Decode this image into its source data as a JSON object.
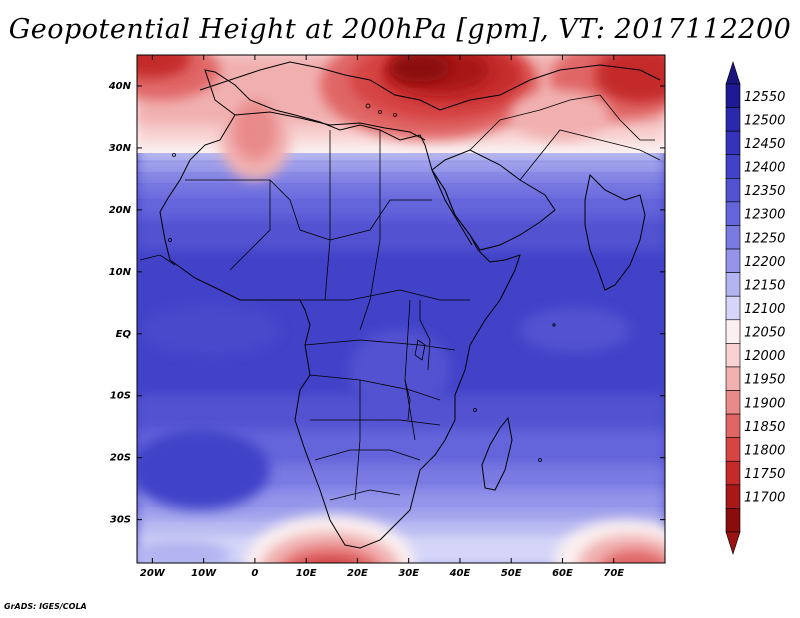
{
  "title": "Geopotential Height at 200hPa [gpm], VT: 2017112200",
  "credit": "GrADS: IGES/COLA",
  "map": {
    "lon_range": [
      -23,
      80
    ],
    "lat_range": [
      -37,
      45
    ],
    "lon_ticks": [
      {
        "lon": -20,
        "label": "20W"
      },
      {
        "lon": -10,
        "label": "10W"
      },
      {
        "lon": 0,
        "label": "0"
      },
      {
        "lon": 10,
        "label": "10E"
      },
      {
        "lon": 20,
        "label": "20E"
      },
      {
        "lon": 30,
        "label": "30E"
      },
      {
        "lon": 40,
        "label": "40E"
      },
      {
        "lon": 50,
        "label": "50E"
      },
      {
        "lon": 60,
        "label": "60E"
      },
      {
        "lon": 70,
        "label": "70E"
      }
    ],
    "lat_ticks": [
      {
        "lat": 40,
        "label": "40N"
      },
      {
        "lat": 30,
        "label": "30N"
      },
      {
        "lat": 20,
        "label": "20N"
      },
      {
        "lat": 10,
        "label": "10N"
      },
      {
        "lat": 0,
        "label": "EQ"
      },
      {
        "lat": -10,
        "label": "10S"
      },
      {
        "lat": -20,
        "label": "20S"
      },
      {
        "lat": -30,
        "label": "30S"
      }
    ]
  },
  "colorbar": {
    "levels": [
      "12550",
      "12500",
      "12450",
      "12400",
      "12350",
      "12300",
      "12250",
      "12200",
      "12150",
      "12100",
      "12050",
      "12000",
      "11950",
      "11900",
      "11850",
      "11800",
      "11750",
      "11700"
    ],
    "colors": [
      "#1e1a96",
      "#2a28ab",
      "#3533bb",
      "#4142c8",
      "#5252d1",
      "#6565db",
      "#7a7ae3",
      "#9495ea",
      "#b2b3f1",
      "#d4d5f8",
      "#fbf0f0",
      "#f8d2d2",
      "#f1b0b0",
      "#e98a8a",
      "#e06666",
      "#d64444",
      "#c42a2a",
      "#a81818",
      "#8a0c0c"
    ],
    "top_arrow_color": "#1a1680",
    "bottom_arrow_color": "#9a1212"
  },
  "field_colors": {
    "deep_blue": "#4142c8",
    "blue": "#5252d1",
    "mid_blue": "#6565db",
    "light_blue": "#7a7ae3",
    "pale_blue": "#9495ea",
    "very_pale_blue": "#b2b3f1",
    "near_white_blue": "#d4d5f8",
    "white": "#fbf0f0",
    "pale_red": "#f8d2d2",
    "light_red": "#f1b0b0",
    "mid_red": "#e06666",
    "red": "#d64444",
    "dark_red": "#a81818",
    "darkest_red": "#8a0c0c"
  }
}
